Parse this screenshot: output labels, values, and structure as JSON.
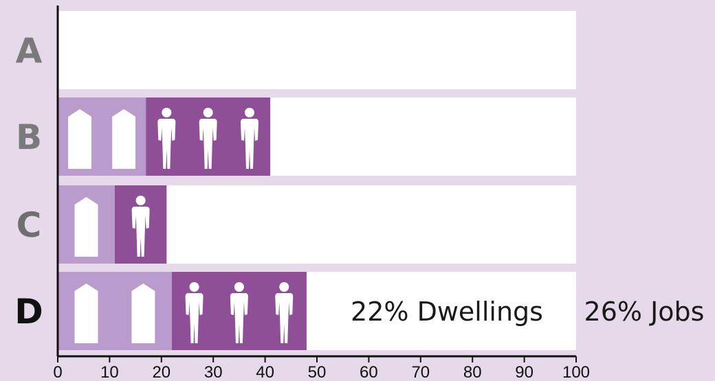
{
  "chart_data": {
    "type": "bar",
    "stacked": true,
    "orientation": "horizontal",
    "categories": [
      "A",
      "B",
      "C",
      "D"
    ],
    "series": [
      {
        "name": "Dwellings",
        "values": [
          0,
          17,
          11,
          22
        ],
        "color": "#b99ccd",
        "icon": "house-icon"
      },
      {
        "name": "Jobs",
        "values": [
          0,
          24,
          10,
          26
        ],
        "color": "#8e4f97",
        "icon": "person-icon"
      }
    ],
    "xlim": [
      0,
      100
    ],
    "x_ticks": [
      "0",
      "10",
      "20",
      "30",
      "40",
      "50",
      "60",
      "70",
      "80",
      "90",
      "100"
    ],
    "icon_counts": {
      "Dwellings": [
        0,
        2,
        1,
        2
      ],
      "Jobs": [
        0,
        3,
        1,
        3
      ]
    },
    "category_label_colors": [
      "#7a7a7a",
      "#7a7a7a",
      "#6f6f6f",
      "#111111"
    ],
    "annotations": [
      {
        "category": "D",
        "text": "22% Dwellings"
      },
      {
        "category": "D",
        "text": "26% Jobs"
      }
    ],
    "colors": {
      "background": "#e6d9ea",
      "bar_track": "#ffffff",
      "axis": "#111111",
      "icon": "#ffffff"
    }
  }
}
